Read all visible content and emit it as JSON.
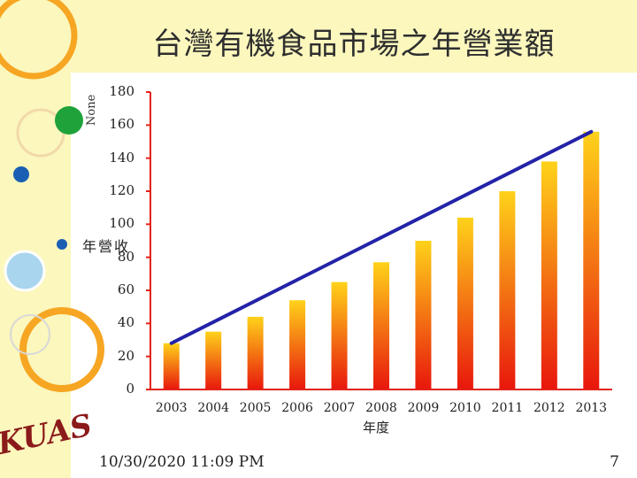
{
  "slide": {
    "title": "台灣有機食品市場之年營業額",
    "footer_date": "10/30/2020 11:09 PM",
    "page_number": "7",
    "logo_text": "KUAS"
  },
  "chart_data": {
    "type": "bar",
    "title": "台灣有機食品市場之年營業額",
    "xlabel": "年度",
    "ylabel": "年營收",
    "axis_label_rotated": "None",
    "categories": [
      "2003",
      "2004",
      "2005",
      "2006",
      "2007",
      "2008",
      "2009",
      "2010",
      "2011",
      "2012",
      "2013"
    ],
    "values": [
      28,
      35,
      44,
      54,
      65,
      77,
      90,
      104,
      120,
      138,
      156
    ],
    "trend_line": {
      "start": 28,
      "end": 156
    },
    "ylim": [
      0,
      180
    ],
    "yticks": [
      0,
      20,
      40,
      60,
      80,
      100,
      120,
      140,
      160,
      180
    ],
    "grid": false,
    "colors": {
      "bar_top": "#ffd21a",
      "bar_bottom": "#e8170c",
      "trend": "#2323a8",
      "axis": "#e2231a"
    }
  }
}
